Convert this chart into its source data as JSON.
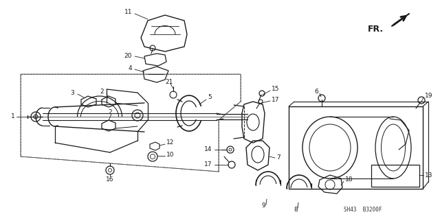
{
  "bg_color": "#ffffff",
  "line_color": "#1a1a1a",
  "label_color": "#1a1a1a",
  "part_number_text": "SH43  B3200F",
  "fr_label": "FR.",
  "fig_width": 6.4,
  "fig_height": 3.19,
  "dpi": 100,
  "label_fontsize": 6.5,
  "label_fontsize_small": 5.5
}
